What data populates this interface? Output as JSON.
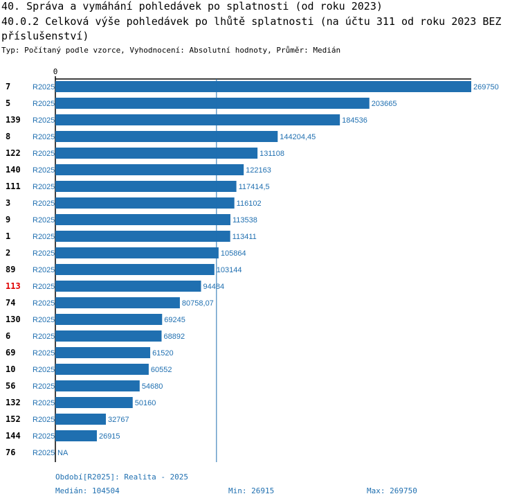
{
  "header": {
    "title_line1": "40. Správa a vymáhání pohledávek po splatnosti (od roku 2023)",
    "title_line2": "40.0.2 Celková výše pohledávek po lhůtě splatnosti (na účtu 311 od roku 2023 BEZ",
    "title_line3": "příslušenství)",
    "subtitle": "Typ: Počítaný podle vzorce, Vyhodnocení: Absolutní hodnoty, Průměr: Medián"
  },
  "colors": {
    "bar": "#1f6fb0",
    "value_label": "#1f6fb0",
    "period_label": "#1f6fb0",
    "highlight_category": "#e00000",
    "category": "#000000",
    "axis": "#000000"
  },
  "chart_data": {
    "type": "bar",
    "orientation": "horizontal",
    "axis_zero_label": "0",
    "xlim": [
      0,
      269750
    ],
    "median_line": 104504,
    "highlight": "113",
    "series_label": "R2025",
    "categories": [
      "7",
      "5",
      "139",
      "8",
      "122",
      "140",
      "111",
      "3",
      "9",
      "1",
      "2",
      "89",
      "113",
      "74",
      "130",
      "6",
      "69",
      "10",
      "56",
      "132",
      "152",
      "144",
      "76"
    ],
    "values": [
      269750,
      203665,
      184536,
      144204.45,
      131108,
      122163,
      117414.5,
      116102,
      113538,
      113411,
      105864,
      103144,
      94484,
      80758.07,
      69245,
      68892,
      61520,
      60552,
      54680,
      50160,
      32767,
      26915,
      null
    ],
    "value_labels": [
      "269750",
      "203665",
      "184536",
      "144204,45",
      "131108",
      "122163",
      "117414,5",
      "116102",
      "113538",
      "113411",
      "105864",
      "103144",
      "94484",
      "80758,07",
      "69245",
      "68892",
      "61520",
      "60552",
      "54680",
      "50160",
      "32767",
      "26915",
      "NA"
    ]
  },
  "footer": {
    "period": "Období[R2025]: Realita - 2025",
    "median": "Medián: 104504",
    "min": "Min: 26915",
    "max": "Max: 269750"
  }
}
